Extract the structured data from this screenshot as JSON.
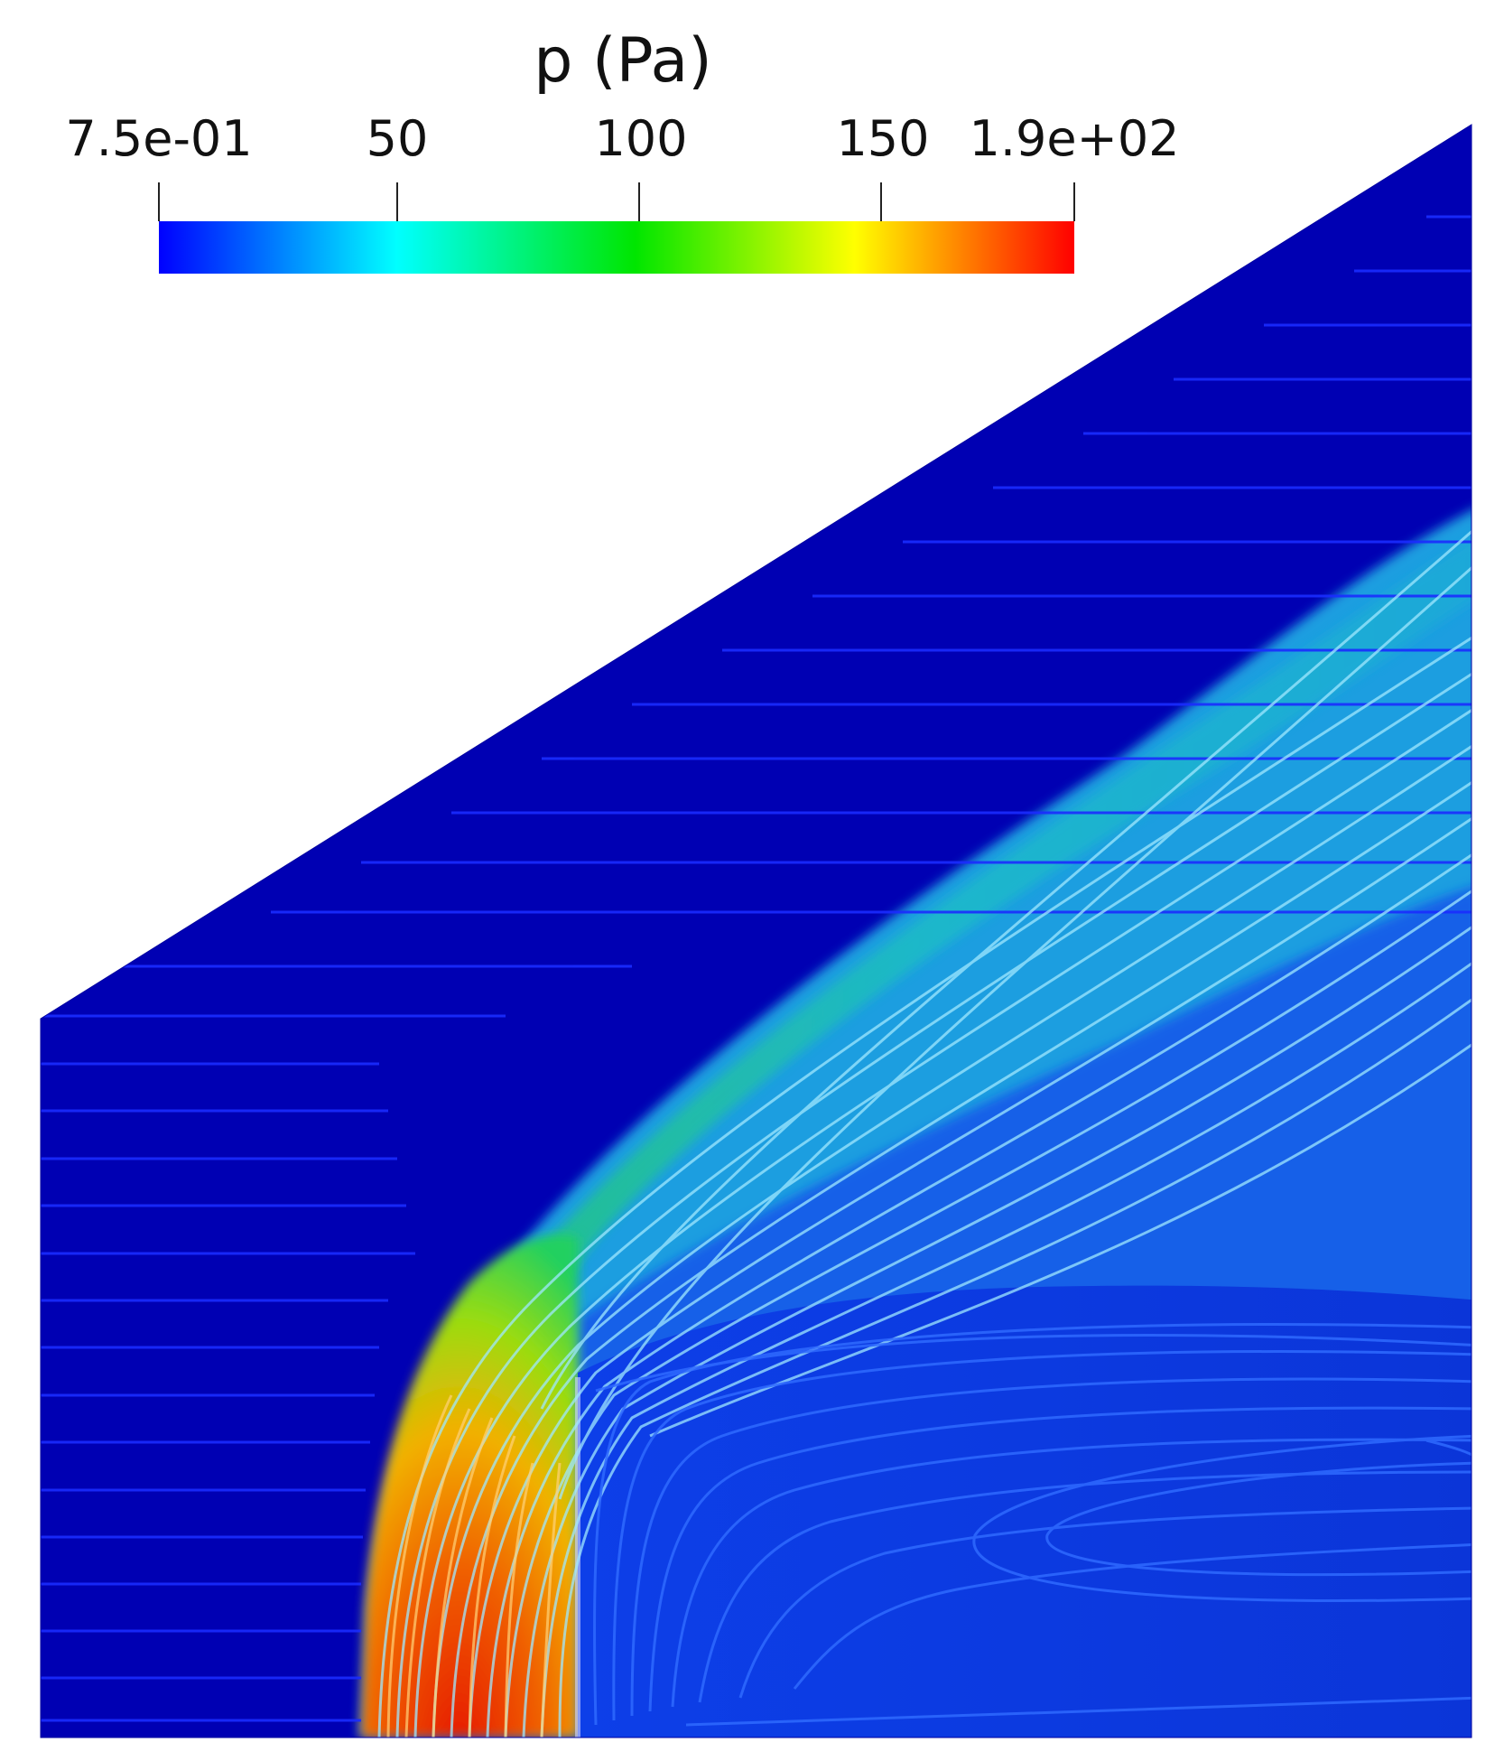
{
  "colorbar": {
    "title": "p (Pa)",
    "tick_labels": [
      "7.5e-01",
      "50",
      "100",
      "150",
      "1.9e+02"
    ],
    "tick_values": [
      0.75,
      50,
      100,
      150,
      190
    ],
    "range": [
      0.75,
      190
    ],
    "colormap": [
      "#0000ff",
      "#00ffff",
      "#00e600",
      "#ffff00",
      "#ff0000"
    ]
  },
  "field": {
    "variable": "p",
    "unit": "Pa",
    "freestream_color": "#0000b3",
    "stagnation_color": "#d41a00",
    "wake_color": "#0d3ae6"
  }
}
